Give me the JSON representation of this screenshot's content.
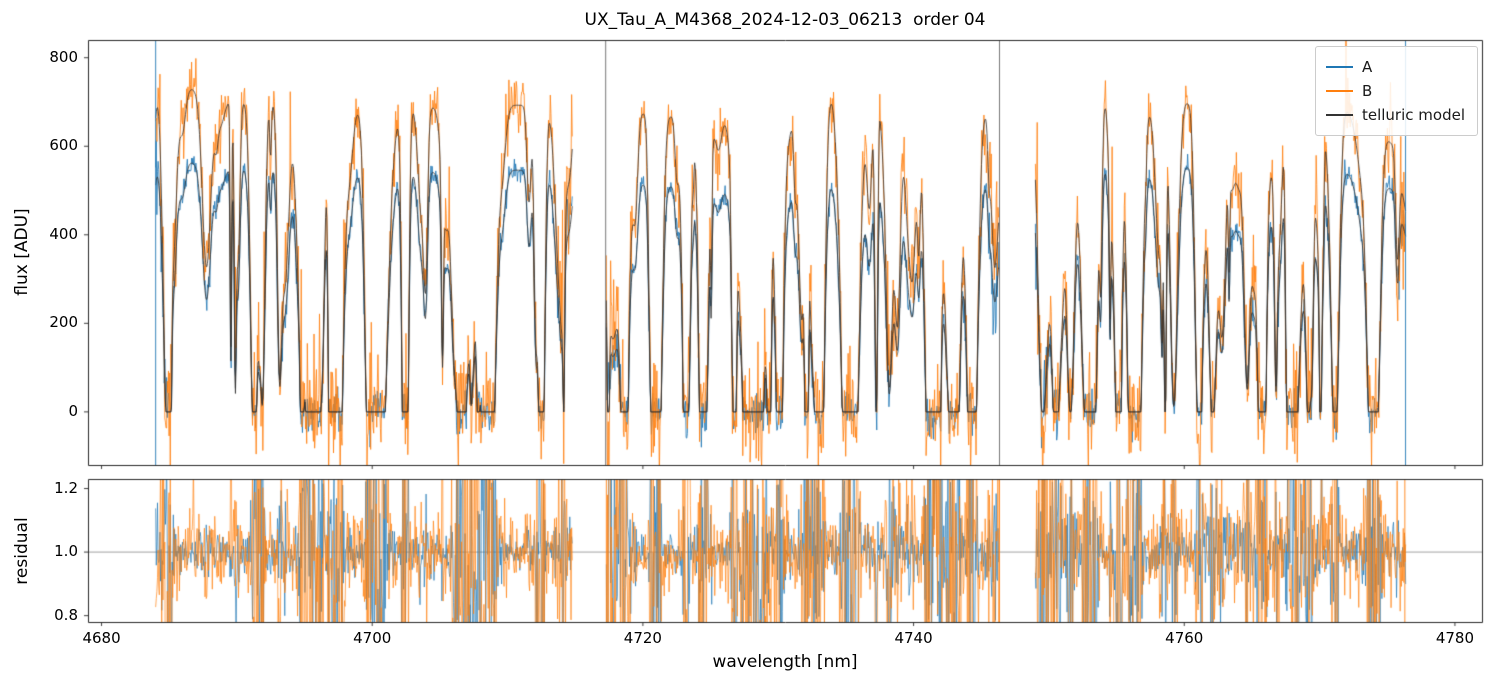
{
  "chart_data": {
    "type": "line",
    "title": "UX_Tau_A_M4368_2024-12-03_06213  order 04",
    "xlabel": "wavelength [nm]",
    "xlim": [
      4679,
      4782
    ],
    "xticks": [
      {
        "v": 4680,
        "label": "4680"
      },
      {
        "v": 4700,
        "label": "4700"
      },
      {
        "v": 4720,
        "label": "4720"
      },
      {
        "v": 4740,
        "label": "4740"
      },
      {
        "v": 4760,
        "label": "4760"
      },
      {
        "v": 4780,
        "label": "4780"
      }
    ],
    "panels": [
      {
        "name": "flux",
        "ylabel": "flux [ADU]",
        "ylim": [
          -120,
          840
        ],
        "yticks": [
          {
            "v": 0,
            "label": "0"
          },
          {
            "v": 200,
            "label": "200"
          },
          {
            "v": 400,
            "label": "400"
          },
          {
            "v": 600,
            "label": "600"
          },
          {
            "v": 800,
            "label": "800"
          }
        ]
      },
      {
        "name": "residual",
        "ylabel": "residual",
        "ylim": [
          0.78,
          1.23
        ],
        "yticks": [
          {
            "v": 0.8,
            "label": "0.8"
          },
          {
            "v": 1.0,
            "label": "1.0"
          },
          {
            "v": 1.2,
            "label": "1.2"
          }
        ],
        "refline": 1.0
      }
    ],
    "legend": {
      "position": "upper right",
      "entries": [
        {
          "label": "A",
          "color": "#1f77b4"
        },
        {
          "label": "B",
          "color": "#ff7f0e"
        },
        {
          "label": "telluric model",
          "color": "#333333"
        }
      ]
    },
    "segments": [
      {
        "x_start": 4684.0,
        "x_end": 4714.8
      },
      {
        "x_start": 4717.3,
        "x_end": 4746.3
      },
      {
        "x_start": 4749.0,
        "x_end": 4776.4
      }
    ],
    "series": [
      {
        "name": "A",
        "color": "#1f77b4",
        "noise_sigma": 13,
        "residual_sigma": 0.032,
        "continuum": [
          [
            4684,
            575
          ],
          [
            4687,
            562
          ],
          [
            4690,
            552
          ],
          [
            4693,
            546
          ],
          [
            4696,
            545
          ],
          [
            4700,
            540
          ],
          [
            4704,
            542
          ],
          [
            4708,
            548
          ],
          [
            4712,
            545
          ],
          [
            4715,
            538
          ],
          [
            4717,
            522
          ],
          [
            4721,
            512
          ],
          [
            4725,
            505
          ],
          [
            4729,
            515
          ],
          [
            4732,
            530
          ],
          [
            4735,
            515
          ],
          [
            4739,
            508
          ],
          [
            4743,
            512
          ],
          [
            4746,
            520
          ],
          [
            4749,
            530
          ],
          [
            4753,
            540
          ],
          [
            4757,
            550
          ],
          [
            4761,
            555
          ],
          [
            4765,
            550
          ],
          [
            4769,
            545
          ],
          [
            4773,
            540
          ],
          [
            4775.5,
            500
          ],
          [
            4776.5,
            380
          ]
        ]
      },
      {
        "name": "B",
        "color": "#ff7f0e",
        "noise_sigma": 34,
        "residual_sigma": 0.052,
        "continuum": [
          [
            4684,
            745
          ],
          [
            4687,
            728
          ],
          [
            4690,
            705
          ],
          [
            4693,
            695
          ],
          [
            4696,
            690
          ],
          [
            4700,
            685
          ],
          [
            4704,
            688
          ],
          [
            4708,
            694
          ],
          [
            4712,
            692
          ],
          [
            4715,
            688
          ],
          [
            4717,
            688
          ],
          [
            4721,
            672
          ],
          [
            4725,
            660
          ],
          [
            4729,
            690
          ],
          [
            4732,
            710
          ],
          [
            4735,
            725
          ],
          [
            4739,
            700
          ],
          [
            4743,
            688
          ],
          [
            4746,
            682
          ],
          [
            4749,
            688
          ],
          [
            4753,
            690
          ],
          [
            4757,
            698
          ],
          [
            4761,
            700
          ],
          [
            4765,
            696
          ],
          [
            4769,
            690
          ],
          [
            4773,
            680
          ],
          [
            4775.5,
            600
          ],
          [
            4776.5,
            430
          ]
        ]
      },
      {
        "name": "telluric model",
        "color": "#2e2e2e"
      }
    ],
    "telluric": {
      "seed": 42,
      "random_lines_per_nm": 2.4,
      "depth_range": [
        0.08,
        0.98
      ],
      "width_range": [
        0.05,
        0.33
      ],
      "deep_lines": [
        [
          4691.3,
          1.15,
          0.25
        ],
        [
          4691.9,
          0.9,
          0.18
        ],
        [
          4695.4,
          1.2,
          0.45
        ],
        [
          4697.6,
          1.0,
          0.3
        ],
        [
          4700.3,
          1.05,
          0.3
        ],
        [
          4702.4,
          0.8,
          0.2
        ],
        [
          4706.6,
          1.15,
          0.3
        ],
        [
          4708.3,
          1.1,
          0.28
        ],
        [
          4712.4,
          0.85,
          0.22
        ],
        [
          4718.6,
          1.0,
          0.25
        ],
        [
          4721.2,
          0.95,
          0.25
        ],
        [
          4724.6,
          0.9,
          0.25
        ],
        [
          4727.9,
          1.2,
          0.5
        ],
        [
          4730.1,
          1.0,
          0.25
        ],
        [
          4733.0,
          0.9,
          0.2
        ],
        [
          4735.6,
          1.15,
          0.35
        ],
        [
          4738.2,
          0.9,
          0.22
        ],
        [
          4741.6,
          1.0,
          0.28
        ],
        [
          4744.2,
          1.05,
          0.3
        ],
        [
          4750.6,
          0.95,
          0.25
        ],
        [
          4753.1,
          0.9,
          0.22
        ],
        [
          4756.6,
          1.1,
          0.3
        ],
        [
          4759.2,
          0.9,
          0.22
        ],
        [
          4762.1,
          1.05,
          0.28
        ],
        [
          4765.6,
          0.95,
          0.25
        ],
        [
          4768.2,
          1.1,
          0.3
        ],
        [
          4771.2,
          0.9,
          0.25
        ],
        [
          4774.1,
          1.05,
          0.3
        ]
      ]
    },
    "edge_spikes_flux": [
      {
        "x": 4684.0,
        "color": "#1f77b4"
      },
      {
        "x": 4717.25,
        "color": "#666666"
      },
      {
        "x": 4746.35,
        "color": "#666666"
      },
      {
        "x": 4776.35,
        "color": "#1f77b4"
      }
    ],
    "edge_spikes_residual": [
      {
        "x": 4717.3,
        "color": "#ff7f0e"
      },
      {
        "x": 4746.35,
        "color": "#ff7f0e"
      },
      {
        "x": 4776.3,
        "color": "#ff7f0e"
      }
    ]
  }
}
